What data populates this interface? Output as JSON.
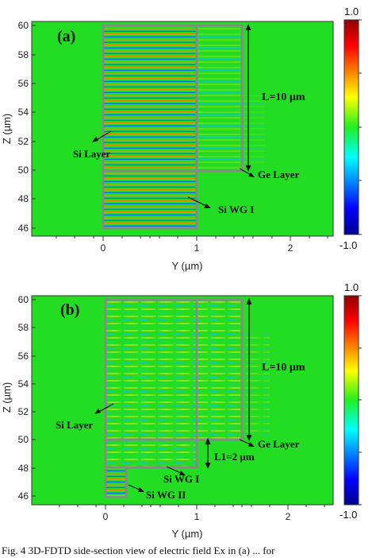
{
  "figure": {
    "caption": "Fig. 4 3D-FDTD side-section view of electric field Ex in (a) ... for"
  },
  "panels": [
    {
      "letter": "(a)",
      "xlabel": "Y (µm)",
      "ylabel": "Z (µm)",
      "xticks": [
        "0",
        "1",
        "2"
      ],
      "yticks": [
        "46",
        "48",
        "50",
        "52",
        "54",
        "56",
        "58",
        "60"
      ],
      "annotations": {
        "length": "L=10 µm",
        "ge_layer": "Ge Layer",
        "si_layer": "Si  Layer",
        "si_wg1": "Si WG I"
      },
      "colorbar": {
        "max": "1.0",
        "min": "-1.0"
      }
    },
    {
      "letter": "(b)",
      "xlabel": "Y (µm)",
      "ylabel": "Z (µm)",
      "xticks": [
        "0",
        "1",
        "2"
      ],
      "yticks": [
        "46",
        "48",
        "50",
        "52",
        "54",
        "56",
        "58",
        "60"
      ],
      "annotations": {
        "length": "L=10 µm",
        "l1": "L1=2 µm",
        "ge_layer": "Ge Layer",
        "si_layer": "Si  Layer",
        "si_wg1": "Si WG I",
        "si_wg2": "Si WG II"
      },
      "colorbar": {
        "max": "1.0",
        "min": "-1.0"
      }
    }
  ],
  "chart_data": [
    {
      "type": "heatmap",
      "title": "",
      "xlabel": "Y (µm)",
      "ylabel": "Z (µm)",
      "xlim": [
        -0.6,
        2.45
      ],
      "ylim": [
        45.6,
        60.3
      ],
      "colorbar_range": [
        -1.0,
        1.0
      ],
      "structures": [
        {
          "label": "Si WG I",
          "y": [
            0,
            1
          ],
          "z": [
            46,
            50
          ]
        },
        {
          "label": "Si Layer",
          "y": [
            0,
            1
          ],
          "z": [
            50,
            60
          ]
        },
        {
          "label": "Ge Layer",
          "y": [
            1,
            1.5
          ],
          "z": [
            50,
            60
          ]
        }
      ]
    },
    {
      "type": "heatmap",
      "title": "",
      "xlabel": "Y (µm)",
      "ylabel": "Z (µm)",
      "xlim": [
        -0.6,
        2.45
      ],
      "ylim": [
        45.6,
        60.3
      ],
      "colorbar_range": [
        -1.0,
        1.0
      ],
      "structures": [
        {
          "label": "Si WG II",
          "y": [
            0,
            0.22
          ],
          "z": [
            46,
            48
          ]
        },
        {
          "label": "Si WG I",
          "y": [
            0,
            1
          ],
          "z": [
            48,
            50
          ]
        },
        {
          "label": "Si Layer",
          "y": [
            0,
            1
          ],
          "z": [
            50,
            60
          ]
        },
        {
          "label": "Ge Layer",
          "y": [
            1,
            1.5
          ],
          "z": [
            50,
            60
          ]
        }
      ]
    }
  ]
}
